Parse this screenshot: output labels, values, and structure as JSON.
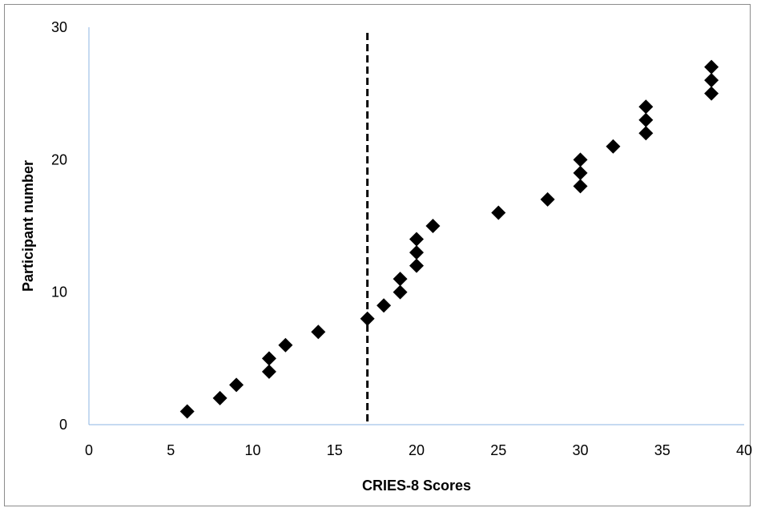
{
  "chart_data": {
    "type": "scatter",
    "xlabel": "CRIES-8 Scores",
    "ylabel": "Participant number",
    "xlim": [
      0,
      40
    ],
    "ylim": [
      0,
      30
    ],
    "x_ticks": [
      0,
      5,
      10,
      15,
      20,
      25,
      30,
      35,
      40
    ],
    "y_ticks": [
      0,
      10,
      20,
      30
    ],
    "grid": false,
    "marker": "diamond",
    "marker_color": "#000000",
    "axis_color": "#8eb4e3",
    "threshold_line": {
      "x": 17,
      "style": "dashed",
      "color": "#000000"
    },
    "series": [
      {
        "points": [
          {
            "x": 6,
            "y": 1
          },
          {
            "x": 8,
            "y": 2
          },
          {
            "x": 9,
            "y": 3
          },
          {
            "x": 11,
            "y": 4
          },
          {
            "x": 11,
            "y": 5
          },
          {
            "x": 12,
            "y": 6
          },
          {
            "x": 14,
            "y": 7
          },
          {
            "x": 17,
            "y": 8
          },
          {
            "x": 18,
            "y": 9
          },
          {
            "x": 19,
            "y": 10
          },
          {
            "x": 19,
            "y": 11
          },
          {
            "x": 20,
            "y": 12
          },
          {
            "x": 20,
            "y": 13
          },
          {
            "x": 20,
            "y": 14
          },
          {
            "x": 21,
            "y": 15
          },
          {
            "x": 25,
            "y": 16
          },
          {
            "x": 28,
            "y": 17
          },
          {
            "x": 30,
            "y": 18
          },
          {
            "x": 30,
            "y": 19
          },
          {
            "x": 30,
            "y": 20
          },
          {
            "x": 32,
            "y": 21
          },
          {
            "x": 34,
            "y": 22
          },
          {
            "x": 34,
            "y": 23
          },
          {
            "x": 34,
            "y": 24
          },
          {
            "x": 38,
            "y": 25
          },
          {
            "x": 38,
            "y": 26
          },
          {
            "x": 38,
            "y": 27
          }
        ]
      }
    ]
  }
}
